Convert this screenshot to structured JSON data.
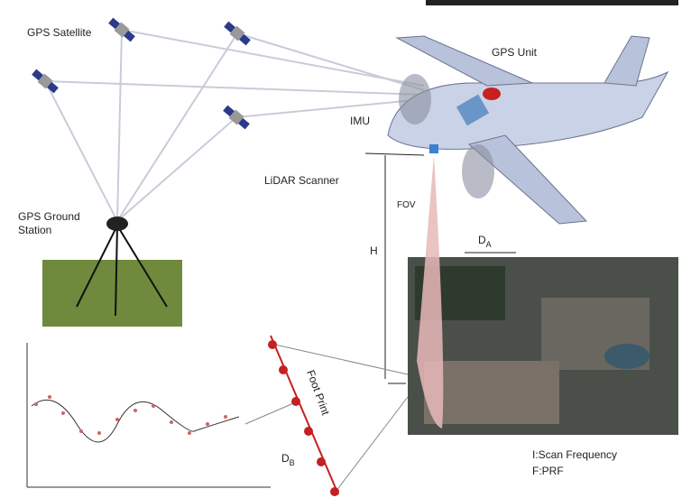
{
  "labels": {
    "gps_satellite": "GPS Satellite",
    "gps_unit": "GPS Unit",
    "imu": "IMU",
    "lidar_scanner": "LiDAR Scanner",
    "gps_ground_station": [
      "GPS Ground",
      "Station"
    ],
    "fov": "FOV",
    "height": "H",
    "swath_width": {
      "text": "D",
      "subscript": "A"
    },
    "point_spacing": {
      "text": "D",
      "subscript": "B"
    },
    "foot_print": "Foot Print",
    "scan_frequency": "I:Scan Frequency",
    "prf": "F:PRF"
  }
}
